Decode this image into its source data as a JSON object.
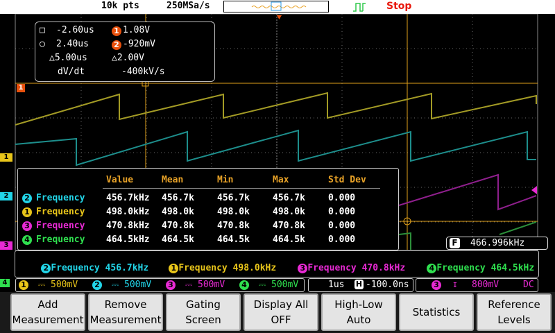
{
  "topbar": {
    "points": "10k pts",
    "sample_rate": "250MSa/s",
    "run_state": "Stop"
  },
  "cursor_readout": {
    "a_time": "-2.60us",
    "a_val": "1.08V",
    "b_time": "2.40us",
    "b_val": "-920mV",
    "delta_time": "△5.00us",
    "delta_val": "△2.00V",
    "dvdt_label": "dV/dt",
    "dvdt_val": "-400kV/s",
    "ch_a": "1",
    "ch_b": "2"
  },
  "channel_markers": {
    "ch1": "1",
    "ch1_left": "1",
    "ch2": "2",
    "ch3": "3",
    "ch4": "4"
  },
  "measurement_table": {
    "headers": [
      "Value",
      "Mean",
      "Min",
      "Max",
      "Std Dev"
    ],
    "rows": [
      {
        "ch": "2",
        "name": "Frequency",
        "value": "456.7kHz",
        "mean": "456.7k",
        "min": "456.7k",
        "max": "456.7k",
        "std": "0.000"
      },
      {
        "ch": "1",
        "name": "Frequency",
        "value": "498.0kHz",
        "mean": "498.0k",
        "min": "498.0k",
        "max": "498.0k",
        "std": "0.000"
      },
      {
        "ch": "3",
        "name": "Frequency",
        "value": "470.8kHz",
        "mean": "470.8k",
        "min": "470.8k",
        "max": "470.8k",
        "std": "0.000"
      },
      {
        "ch": "4",
        "name": "Frequency",
        "value": "464.5kHz",
        "mean": "464.5k",
        "min": "464.5k",
        "max": "464.5k",
        "std": "0.000"
      }
    ]
  },
  "freq_counter": {
    "label": "F",
    "value": "466.996kHz"
  },
  "ticker": [
    {
      "ch": "2",
      "text": "Frequency 456.7kHz"
    },
    {
      "ch": "1",
      "text": "Frequency 498.0kHz"
    },
    {
      "ch": "3",
      "text": "Frequency 470.8kHz"
    },
    {
      "ch": "4",
      "text": "Frequency 464.5kHz"
    }
  ],
  "status": {
    "ch1_scale": "500mV",
    "ch2_scale": "500mV",
    "ch3_scale": "500mV",
    "ch4_scale": "500mV",
    "timebase": "1us",
    "h_label": "H",
    "offset": "-100.0ns",
    "trig_ch": "3",
    "trig_level": "800mV",
    "coupling": "DC",
    "ch1": "1",
    "ch2": "2",
    "ch3": "3",
    "ch4": "4",
    "coupling_icon": "dc-coupling-icon"
  },
  "softkeys": [
    {
      "line1": "Add",
      "line2": "Measurement"
    },
    {
      "line1": "Remove",
      "line2": "Measurement"
    },
    {
      "line1": "Gating",
      "line2": "Screen"
    },
    {
      "line1": "Display All",
      "line2": "OFF"
    },
    {
      "line1": "High-Low",
      "line2": "Auto"
    },
    {
      "line1": "Statistics",
      "line2": ""
    },
    {
      "line1": "Reference",
      "line2": "Levels"
    }
  ],
  "colors": {
    "ch1": "#e8c51a",
    "ch2": "#22d5e8",
    "ch3": "#e82ad4",
    "ch4": "#2fe04f",
    "ch1_trace": "#a39b25",
    "ch2_trace": "#1d8e8c",
    "ch3_trace": "#8f1f8d",
    "ch4_trace": "#2c8f3a",
    "cursor": "#e0a01a",
    "stop": "#e8180c",
    "header": "#e8a227"
  }
}
